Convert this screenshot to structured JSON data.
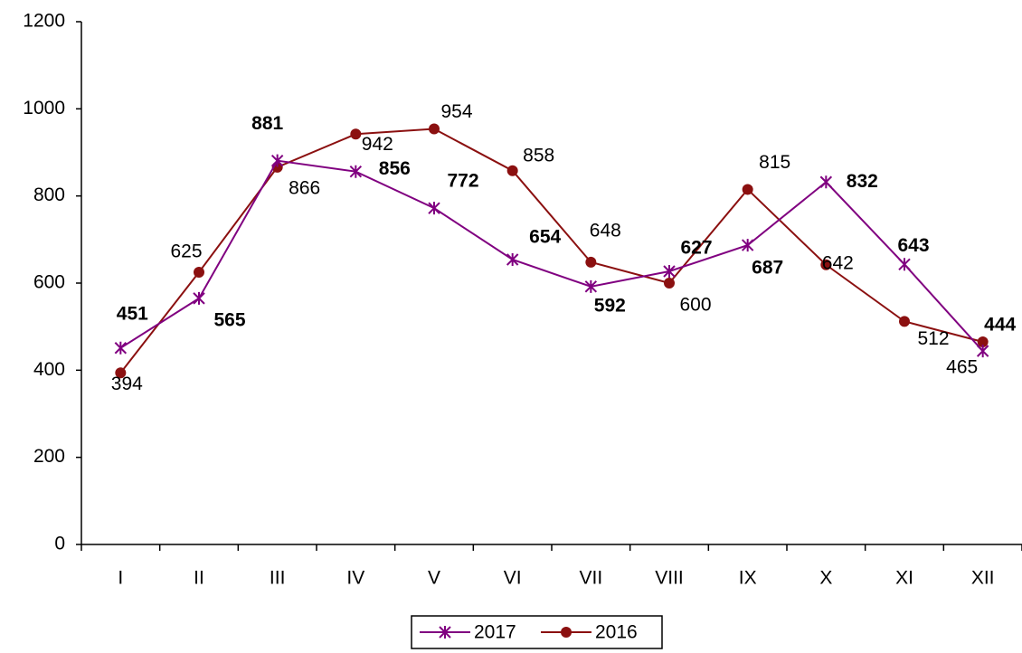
{
  "chart_data": {
    "type": "line",
    "categories": [
      "I",
      "II",
      "III",
      "IV",
      "V",
      "VI",
      "VII",
      "VIII",
      "IX",
      "X",
      "XI",
      "XII"
    ],
    "series": [
      {
        "name": "2017",
        "color": "#800080",
        "marker": "asterisk",
        "values": [
          451,
          565,
          881,
          856,
          772,
          654,
          592,
          627,
          687,
          832,
          643,
          444
        ]
      },
      {
        "name": "2016",
        "color": "#8b1010",
        "marker": "circle",
        "values": [
          394,
          625,
          866,
          942,
          954,
          858,
          648,
          600,
          815,
          642,
          512,
          465
        ]
      }
    ],
    "ylim": [
      0,
      1200
    ],
    "yticks": [
      0,
      200,
      400,
      600,
      800,
      1000,
      1200
    ],
    "grid": false,
    "legend": "bottom"
  }
}
